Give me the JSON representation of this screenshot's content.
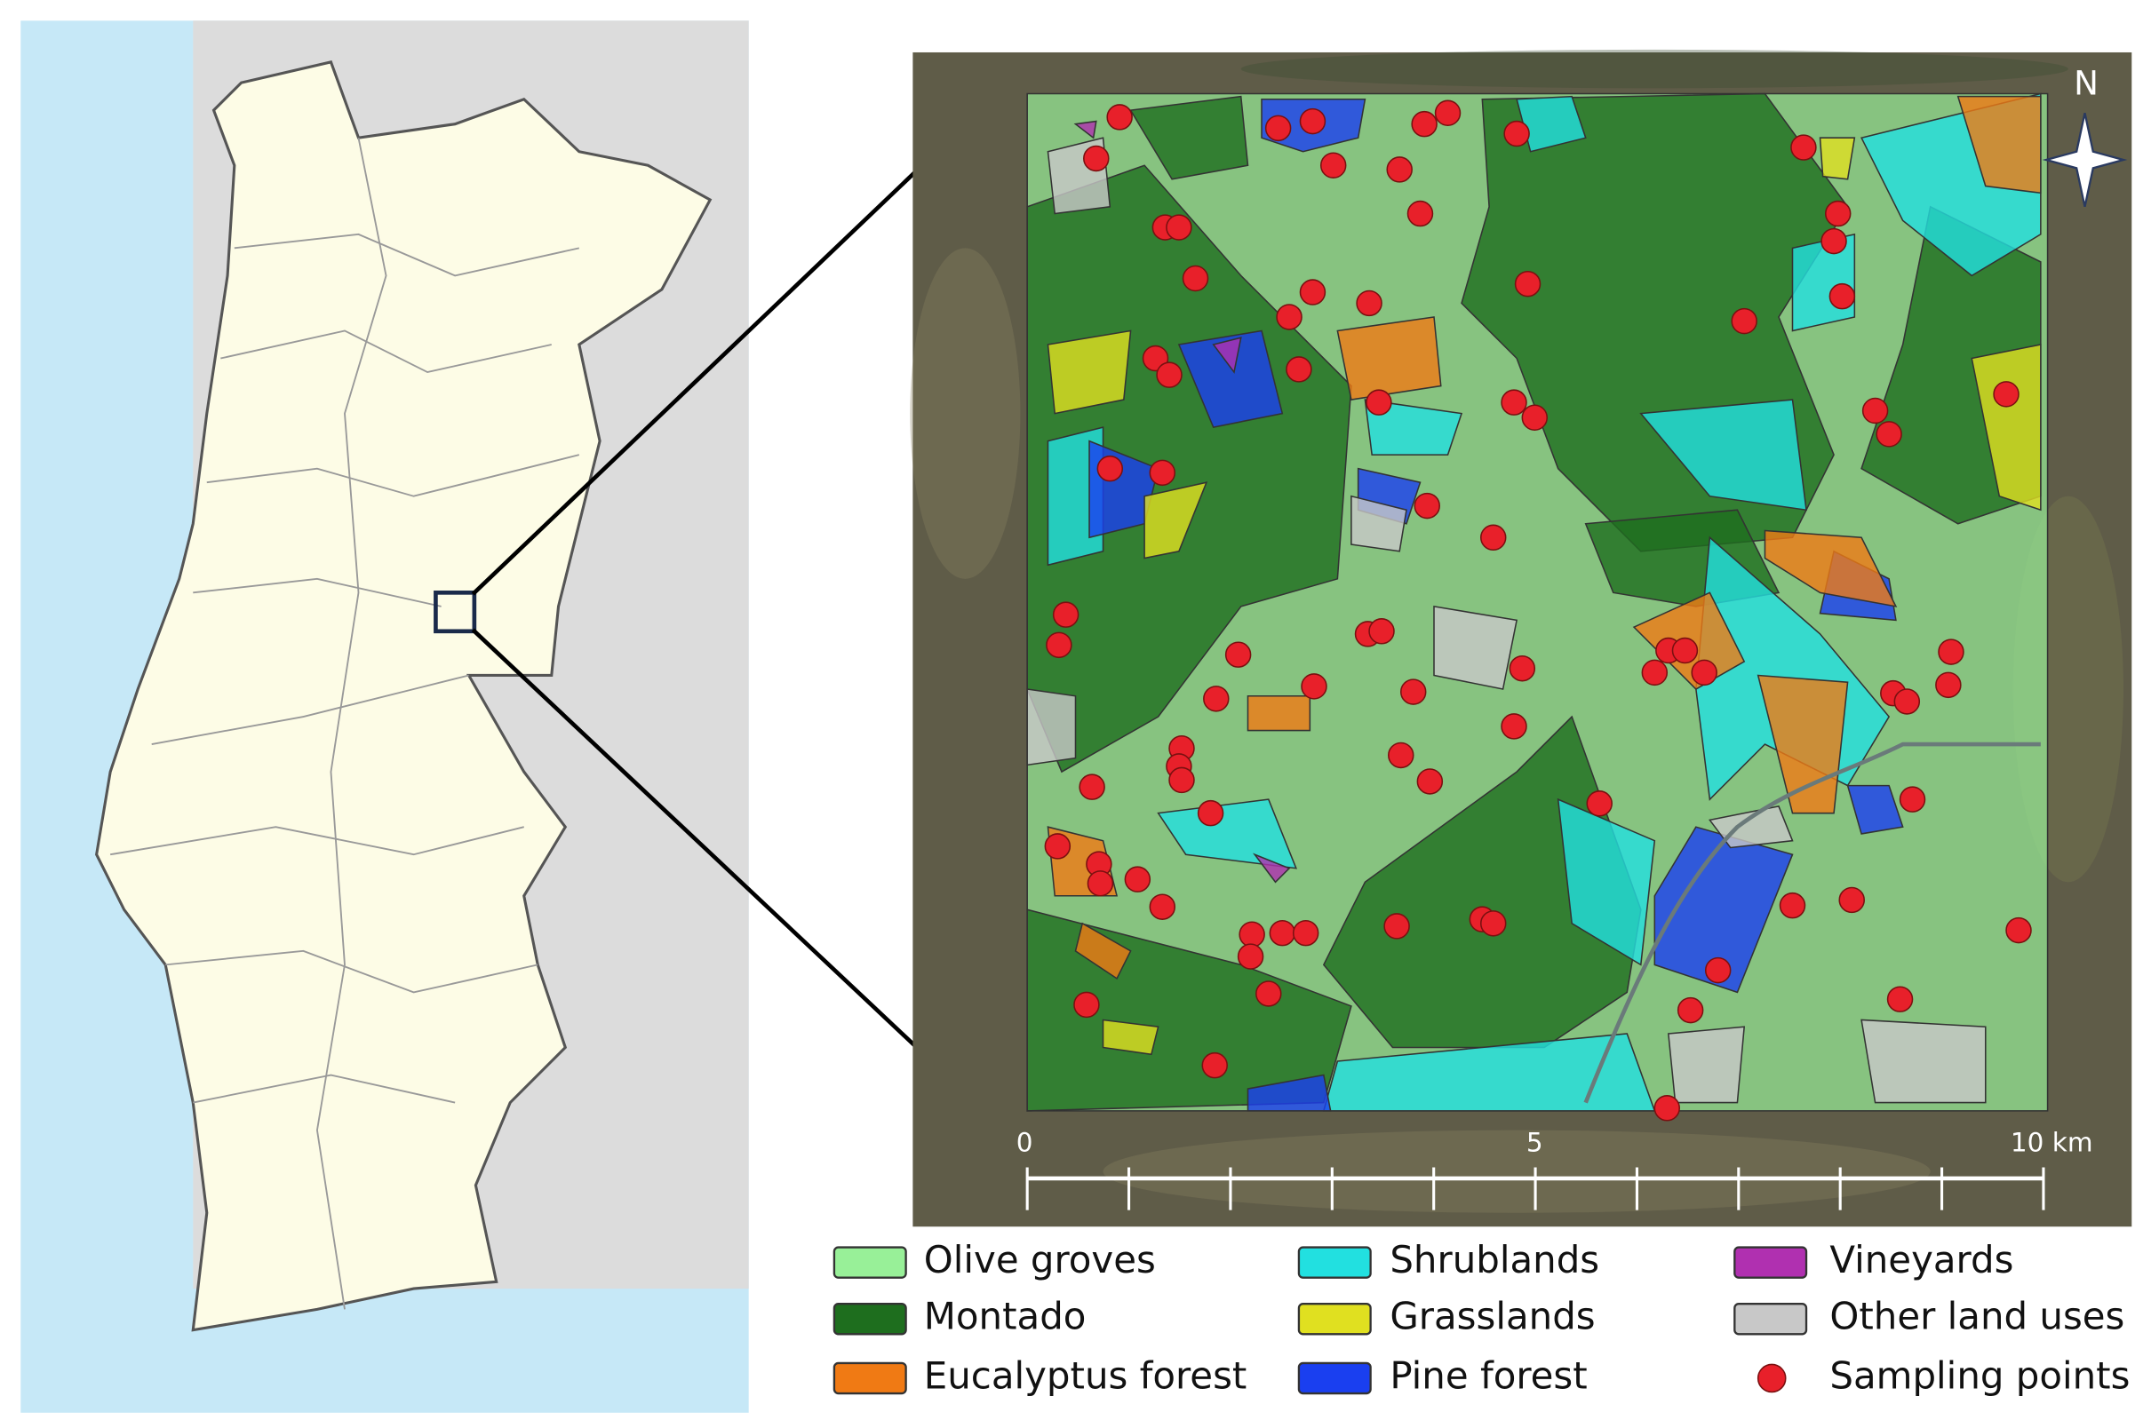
{
  "north": "N",
  "scale": {
    "labels": [
      "0",
      "5",
      "10 km"
    ]
  },
  "legend": [
    {
      "label": "Olive groves",
      "color": "#98f098"
    },
    {
      "label": "Montado",
      "color": "#1e6e1e"
    },
    {
      "label": "Eucalyptus forest",
      "color": "#f07a14"
    },
    {
      "label": "Shrublands",
      "color": "#22e0e0"
    },
    {
      "label": "Grasslands",
      "color": "#e0e020"
    },
    {
      "label": "Pine forest",
      "color": "#1a3ff0"
    },
    {
      "label": "Vineyards",
      "color": "#b030b0"
    },
    {
      "label": "Other land uses",
      "color": "#c8c8c8"
    },
    {
      "label": "Sampling points",
      "color": "#e8202a"
    }
  ]
}
